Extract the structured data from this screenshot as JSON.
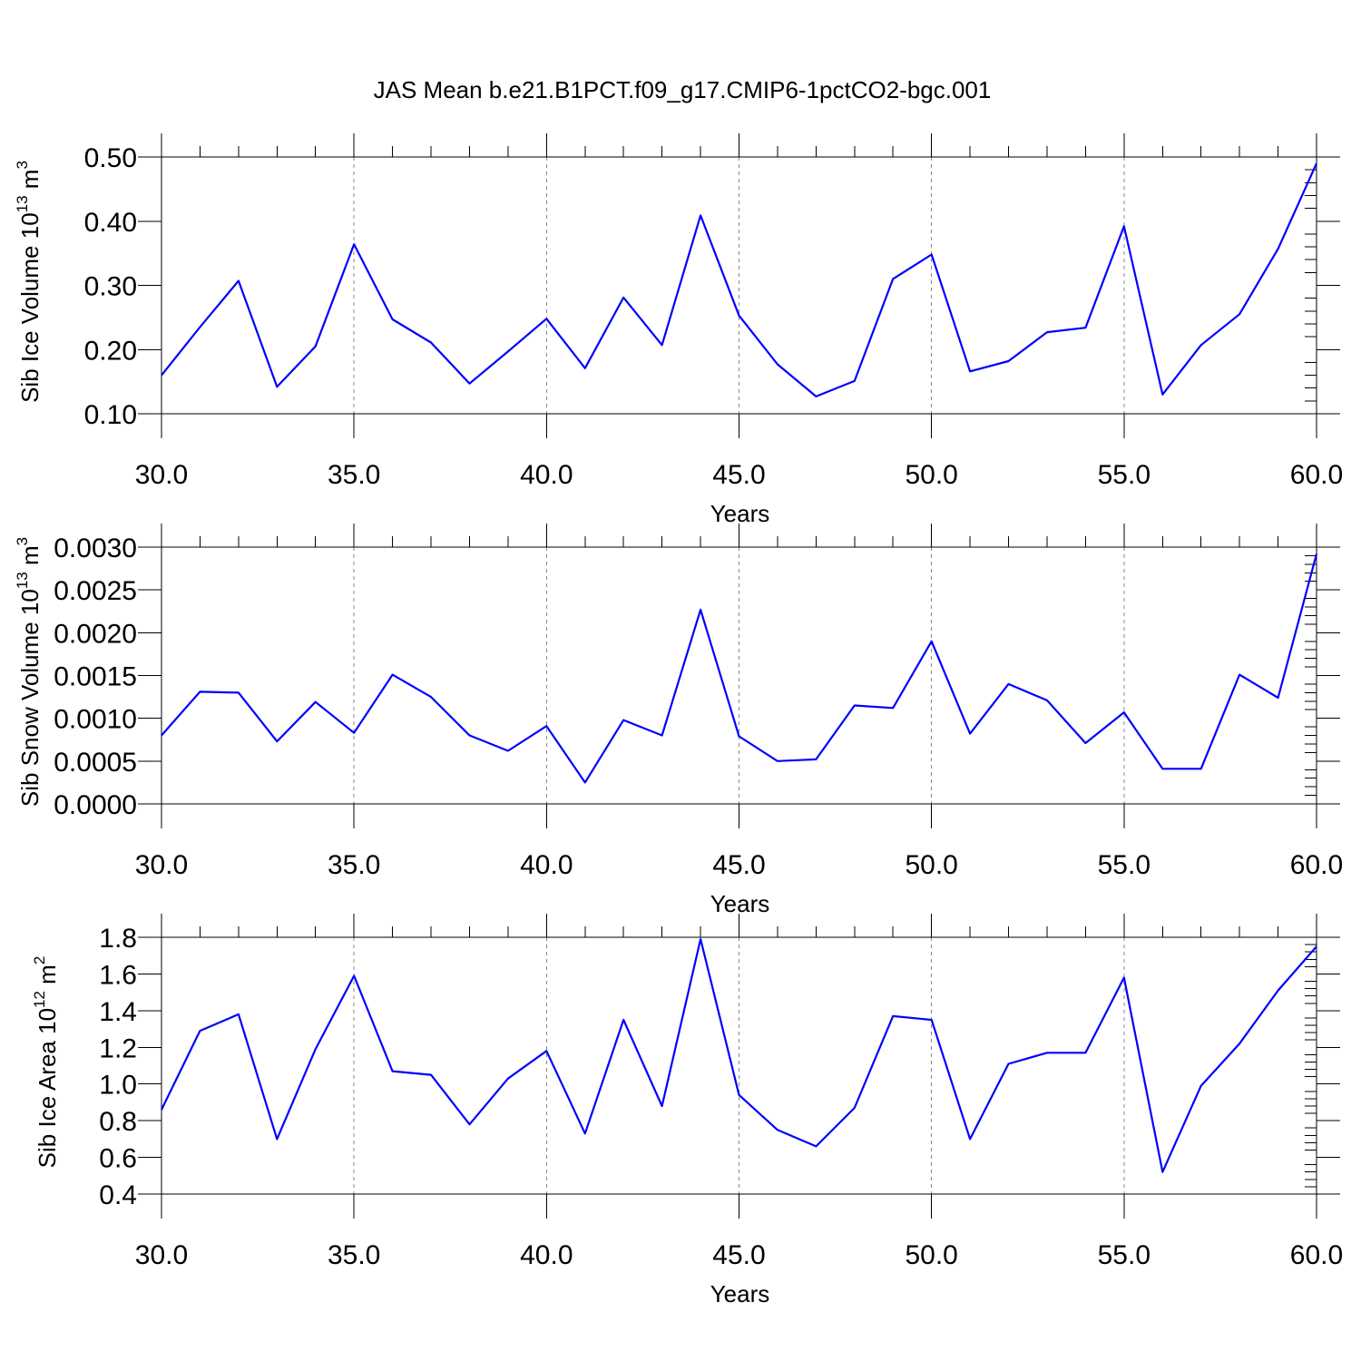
{
  "title": "JAS Mean b.e21.B1PCT.f09_g17.CMIP6-1pctCO2-bgc.001",
  "colors": {
    "series": "#0000ff",
    "grid": "#888888",
    "axes": "#000000"
  },
  "chart_data": [
    {
      "type": "line",
      "xlabel": "Years",
      "ylabel": "Sib Ice Volume 10",
      "ylabel_sup": "13",
      "ylabel_unit": " m",
      "ylabel_unit_sup": "3",
      "xlim": [
        30,
        60
      ],
      "ylim": [
        0.1,
        0.5
      ],
      "xticks": [
        30,
        35,
        40,
        45,
        50,
        55,
        60
      ],
      "xtick_labels": [
        "30.0",
        "35.0",
        "40.0",
        "45.0",
        "50.0",
        "55.0",
        "60.0"
      ],
      "yticks": [
        0.1,
        0.2,
        0.3,
        0.4,
        0.5
      ],
      "ytick_labels": [
        "0.10",
        "0.20",
        "0.30",
        "0.40",
        "0.50"
      ],
      "grid": "vertical dashed at major x ticks",
      "x": [
        30,
        31,
        32,
        33,
        34,
        35,
        36,
        37,
        38,
        39,
        40,
        41,
        42,
        43,
        44,
        45,
        46,
        47,
        48,
        49,
        50,
        51,
        52,
        53,
        54,
        55,
        56,
        57,
        58,
        59,
        60
      ],
      "values": [
        0.16,
        0.235,
        0.307,
        0.142,
        0.205,
        0.364,
        0.247,
        0.211,
        0.147,
        0.197,
        0.248,
        0.171,
        0.281,
        0.207,
        0.409,
        0.253,
        0.177,
        0.127,
        0.151,
        0.31,
        0.348,
        0.166,
        0.182,
        0.227,
        0.234,
        0.392,
        0.13,
        0.207,
        0.255,
        0.357,
        0.49
      ]
    },
    {
      "type": "line",
      "xlabel": "Years",
      "ylabel": "Sib Snow Volume 10",
      "ylabel_sup": "13",
      "ylabel_unit": " m",
      "ylabel_unit_sup": "3",
      "xlim": [
        30,
        60
      ],
      "ylim": [
        0.0,
        0.003
      ],
      "xticks": [
        30,
        35,
        40,
        45,
        50,
        55,
        60
      ],
      "xtick_labels": [
        "30.0",
        "35.0",
        "40.0",
        "45.0",
        "50.0",
        "55.0",
        "60.0"
      ],
      "yticks": [
        0.0,
        0.0005,
        0.001,
        0.0015,
        0.002,
        0.0025,
        0.003
      ],
      "ytick_labels": [
        "0.0000",
        "0.0005",
        "0.0010",
        "0.0015",
        "0.0020",
        "0.0025",
        "0.0030"
      ],
      "grid": "vertical dashed at major x ticks",
      "x": [
        30,
        31,
        32,
        33,
        34,
        35,
        36,
        37,
        38,
        39,
        40,
        41,
        42,
        43,
        44,
        45,
        46,
        47,
        48,
        49,
        50,
        51,
        52,
        53,
        54,
        55,
        56,
        57,
        58,
        59,
        60
      ],
      "values": [
        0.0008,
        0.00131,
        0.0013,
        0.00073,
        0.00119,
        0.00083,
        0.00151,
        0.00125,
        0.0008,
        0.00062,
        0.00091,
        0.00025,
        0.00098,
        0.0008,
        0.00227,
        0.00079,
        0.0005,
        0.00052,
        0.00115,
        0.00112,
        0.0019,
        0.00082,
        0.0014,
        0.00121,
        0.00071,
        0.00107,
        0.00041,
        0.00041,
        0.00151,
        0.00124,
        0.00292
      ]
    },
    {
      "type": "line",
      "xlabel": "Years",
      "ylabel": "Sib Ice Area 10",
      "ylabel_sup": "12",
      "ylabel_unit": " m",
      "ylabel_unit_sup": "2",
      "xlim": [
        30,
        60
      ],
      "ylim": [
        0.4,
        1.8
      ],
      "xticks": [
        30,
        35,
        40,
        45,
        50,
        55,
        60
      ],
      "xtick_labels": [
        "30.0",
        "35.0",
        "40.0",
        "45.0",
        "50.0",
        "55.0",
        "60.0"
      ],
      "yticks": [
        0.4,
        0.6,
        0.8,
        1.0,
        1.2,
        1.4,
        1.6,
        1.8
      ],
      "ytick_labels": [
        "0.4",
        "0.6",
        "0.8",
        "1.0",
        "1.2",
        "1.4",
        "1.6",
        "1.8"
      ],
      "grid": "vertical dashed at major x ticks",
      "x": [
        30,
        31,
        32,
        33,
        34,
        35,
        36,
        37,
        38,
        39,
        40,
        41,
        42,
        43,
        44,
        45,
        46,
        47,
        48,
        49,
        50,
        51,
        52,
        53,
        54,
        55,
        56,
        57,
        58,
        59,
        60
      ],
      "values": [
        0.86,
        1.29,
        1.38,
        0.7,
        1.19,
        1.59,
        1.07,
        1.05,
        0.78,
        1.03,
        1.18,
        0.73,
        1.35,
        0.88,
        1.79,
        0.94,
        0.75,
        0.66,
        0.87,
        1.37,
        1.35,
        0.7,
        1.11,
        1.17,
        1.17,
        1.58,
        0.52,
        0.99,
        1.22,
        1.51,
        1.75
      ]
    }
  ]
}
